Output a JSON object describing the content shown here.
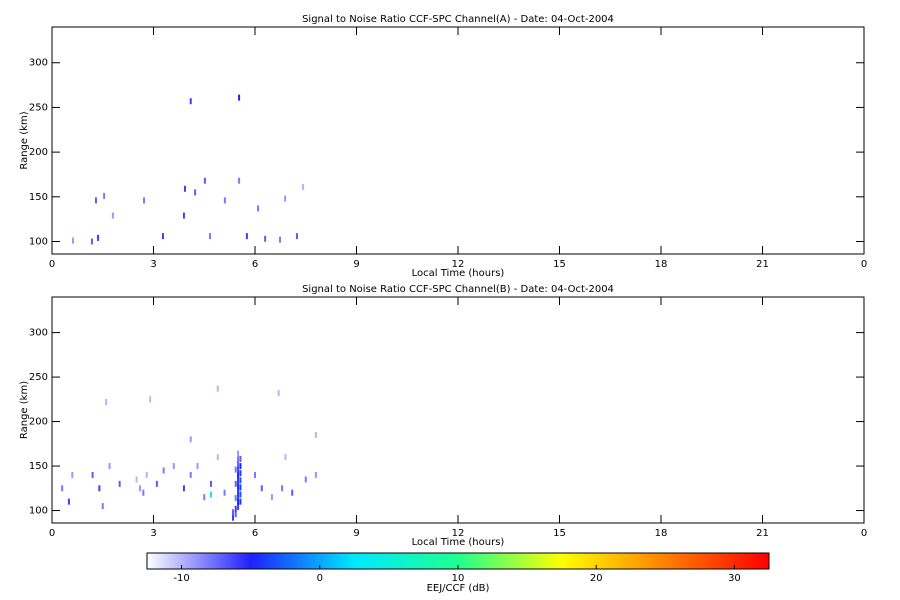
{
  "chart_data": [
    {
      "type": "heatmap",
      "title": "Signal to Noise Ratio CCF-SPC Channel(A) - Date: 04-Oct-2004",
      "x_label": "Local Time (hours)",
      "y_label": "Range (km)",
      "xlim": [
        0,
        24
      ],
      "xticks": [
        0,
        3,
        6,
        9,
        12,
        15,
        18,
        21,
        {
          "value": 24,
          "label": "0"
        }
      ],
      "ylim": [
        86,
        340
      ],
      "yticks": [
        100,
        150,
        200,
        250,
        300
      ],
      "x": [
        4.1,
        5.53,
        5.53,
        1.36,
        1.18,
        0.62,
        1.54,
        1.3,
        2.72,
        3.93,
        4.52,
        3.9,
        5.11,
        5.76,
        6.3,
        6.74,
        7.24,
        6.09,
        3.28,
        1.8,
        4.67,
        6.89,
        4.23,
        7.42
      ],
      "y": [
        257,
        261,
        168,
        104,
        100,
        101,
        151,
        146,
        146,
        159,
        168,
        129,
        146,
        106,
        103,
        102,
        106,
        137,
        106,
        129,
        106,
        148,
        155,
        161
      ],
      "values": [
        -6,
        -5,
        -8,
        -6,
        -7,
        -9,
        -8,
        -7,
        -8,
        -6,
        -7,
        -6,
        -8,
        -6,
        -7,
        -8,
        -7,
        -8,
        -6,
        -9,
        -8,
        -9,
        -7,
        -10
      ]
    },
    {
      "type": "heatmap",
      "title": "Signal to Noise Ratio CCF-SPC Channel(B) - Date: 04-Oct-2004",
      "x_label": "Local Time (hours)",
      "y_label": "Range (km)",
      "xlim": [
        0,
        24
      ],
      "xticks": [
        0,
        3,
        6,
        9,
        12,
        15,
        18,
        21,
        {
          "value": 24,
          "label": "0"
        }
      ],
      "ylim": [
        86,
        340
      ],
      "yticks": [
        100,
        150,
        200,
        250,
        300
      ],
      "x": [
        5.5,
        5.5,
        5.5,
        5.5,
        5.5,
        5.5,
        5.5,
        5.5,
        5.5,
        5.5,
        5.5,
        5.57,
        5.57,
        5.57,
        5.57,
        5.57,
        5.57,
        5.57,
        5.43,
        5.43,
        5.43,
        5.43,
        5.43,
        5.35,
        5.35,
        0.3,
        0.5,
        0.6,
        1.2,
        1.4,
        1.5,
        1.7,
        2.0,
        2.5,
        2.6,
        2.7,
        2.8,
        3.1,
        3.3,
        3.6,
        3.9,
        4.1,
        4.3,
        4.5,
        4.7,
        4.9,
        5.1,
        6.0,
        6.2,
        6.5,
        6.8,
        7.1,
        7.5,
        7.8,
        7.8,
        6.9,
        4.1,
        2.9,
        1.6,
        4.9,
        6.7,
        4.7
      ],
      "y": [
        104,
        110,
        116,
        122,
        128,
        134,
        140,
        146,
        152,
        158,
        164,
        110,
        118,
        126,
        134,
        142,
        150,
        158,
        96,
        102,
        114,
        130,
        146,
        92,
        98,
        125,
        110,
        140,
        140,
        125,
        105,
        150,
        130,
        135,
        125,
        120,
        140,
        130,
        145,
        150,
        125,
        140,
        150,
        115,
        130,
        160,
        120,
        140,
        125,
        115,
        125,
        120,
        135,
        140,
        185,
        160,
        180,
        225,
        222,
        237,
        232,
        118
      ],
      "values": [
        -6,
        -5,
        -4,
        -4,
        -5,
        -4,
        -5,
        -6,
        -7,
        -8,
        -9,
        -4,
        -3,
        -4,
        -3,
        -4,
        -5,
        -7,
        -7,
        -6,
        -8,
        -7,
        -8,
        -6,
        -7,
        -8,
        -6,
        -9,
        -7,
        -6,
        -8,
        -9,
        -7,
        -10,
        -9,
        -8,
        -10,
        -7,
        -8,
        -9,
        -6,
        -8,
        -9,
        -8,
        -7,
        -10,
        -8,
        -8,
        -7,
        -9,
        -8,
        -7,
        -8,
        -9,
        -10,
        -10,
        -9,
        -10,
        -10,
        -10,
        -10,
        5
      ]
    }
  ],
  "colorbar": {
    "label": "EEJ/CCF (dB)",
    "clim": [
      -12.5,
      32.5
    ],
    "ticks": [
      -10,
      0,
      10,
      20,
      30
    ],
    "colors": [
      "#ffffff",
      "#2020ff",
      "#00e8ff",
      "#20ff90",
      "#ffff00",
      "#ff8000",
      "#ff0000"
    ]
  }
}
